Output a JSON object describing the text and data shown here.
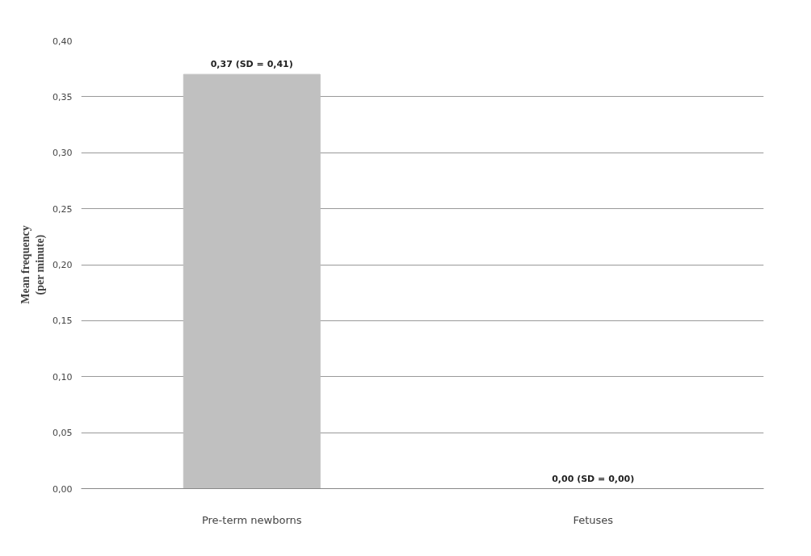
{
  "chart_data": {
    "type": "bar",
    "ylabel": "Mean frequency\n(per minute)",
    "categories": [
      "Pre-term newborns",
      "Fetuses"
    ],
    "values": [
      0.37,
      0.0
    ],
    "color": "#c0c0c0",
    "value_labels": [
      "0,37 (SD = 0,41)",
      "0,00 (SD = 0,00)"
    ],
    "ylim": [
      0,
      0.4
    ],
    "yticks": [
      {
        "value": 0,
        "label": "0,00"
      },
      {
        "value": 0.05,
        "label": "0,05"
      },
      {
        "value": 0.1,
        "label": "0,10"
      },
      {
        "value": 0.15,
        "label": "0,15"
      },
      {
        "value": 0.2,
        "label": "0,20"
      },
      {
        "value": 0.25,
        "label": "0,25"
      },
      {
        "value": 0.3,
        "label": "0,30"
      },
      {
        "value": 0.35,
        "label": "0,35"
      },
      {
        "value": 0.4,
        "label": "0,40"
      }
    ],
    "grid": "y"
  }
}
